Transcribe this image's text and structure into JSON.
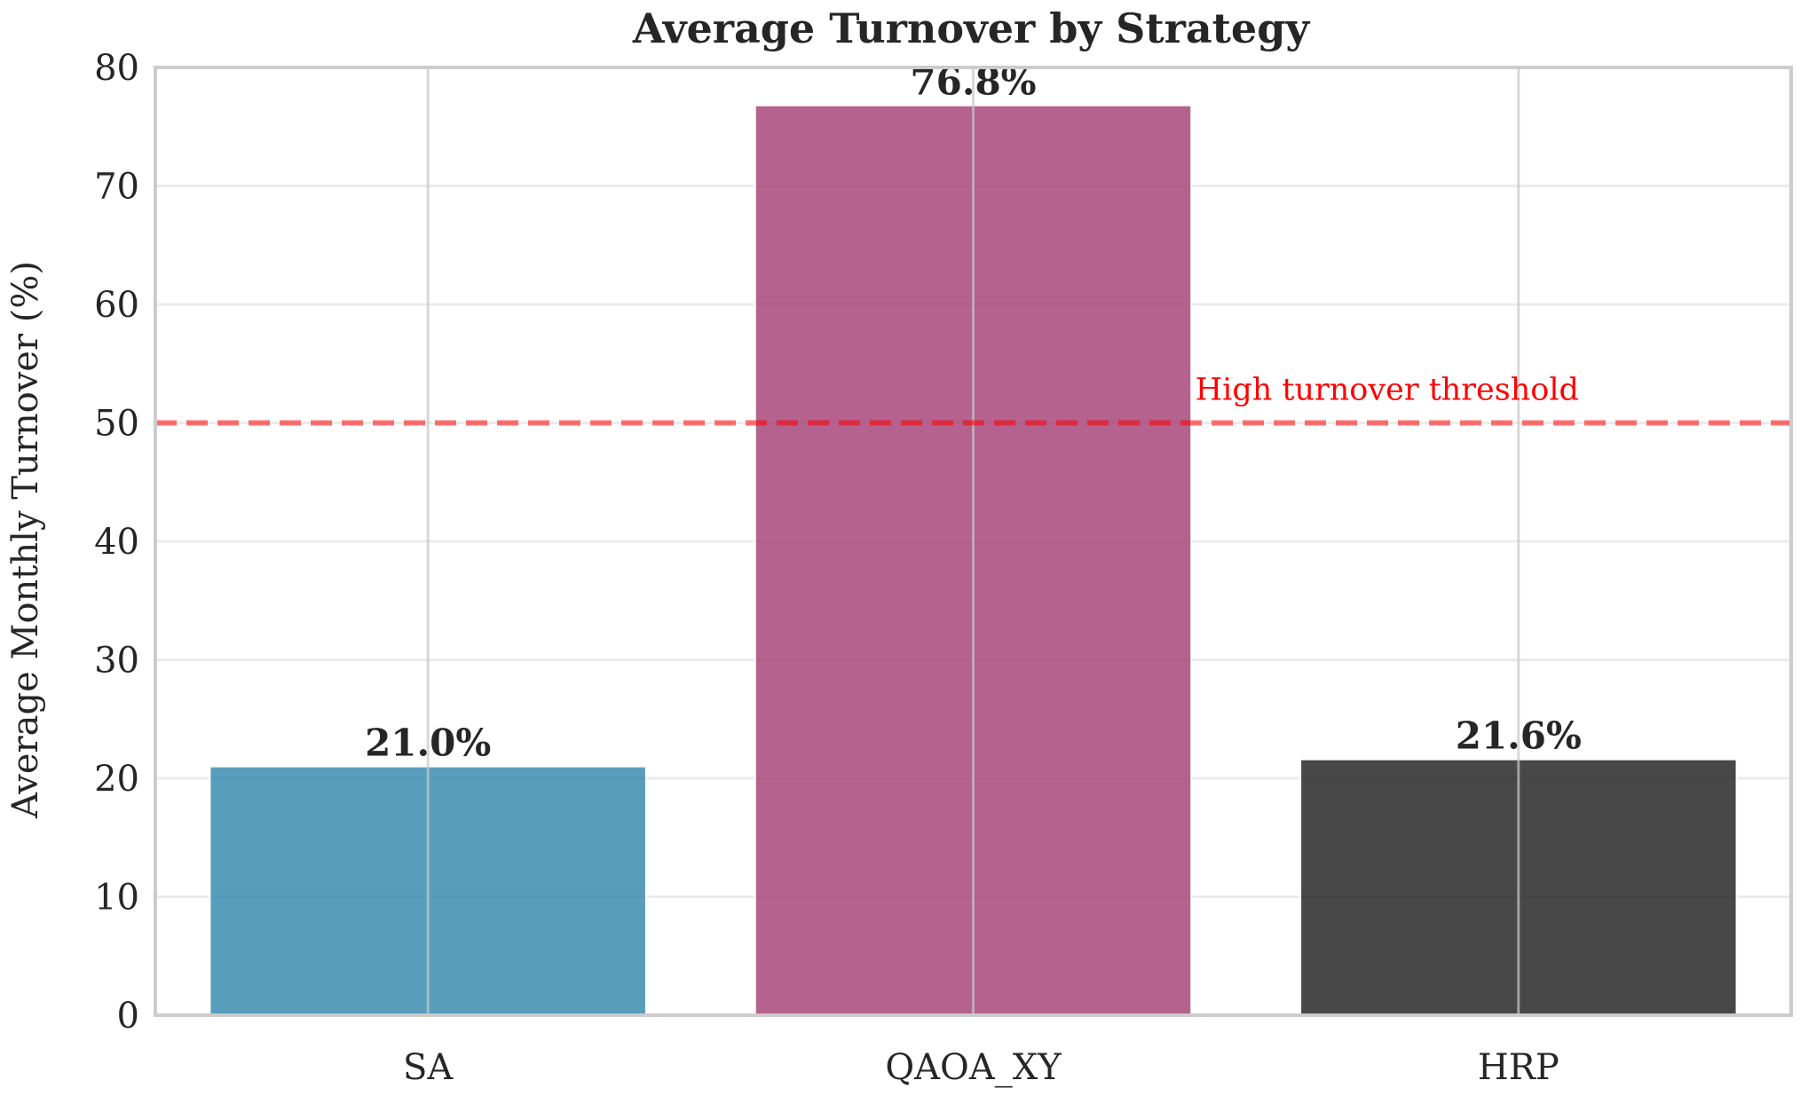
{
  "chart_data": {
    "type": "bar",
    "title": "Average Turnover by Strategy",
    "xlabel": "",
    "ylabel": "Average Monthly Turnover (%)",
    "categories": [
      "SA",
      "QAOA_XY",
      "HRP"
    ],
    "values": [
      21.0,
      76.8,
      21.6
    ],
    "value_labels": [
      "21.0%",
      "76.8%",
      "21.6%"
    ],
    "bar_colors": [
      "#2E86AB",
      "#A23B72",
      "#1A1A1A"
    ],
    "ylim": [
      0,
      80
    ],
    "yticks": [
      0,
      10,
      20,
      30,
      40,
      50,
      60,
      70,
      80
    ],
    "grid": true,
    "reference_line": {
      "value": 50,
      "label": "High turnover threshold",
      "color": "#FF0000",
      "style": "dashed"
    }
  }
}
